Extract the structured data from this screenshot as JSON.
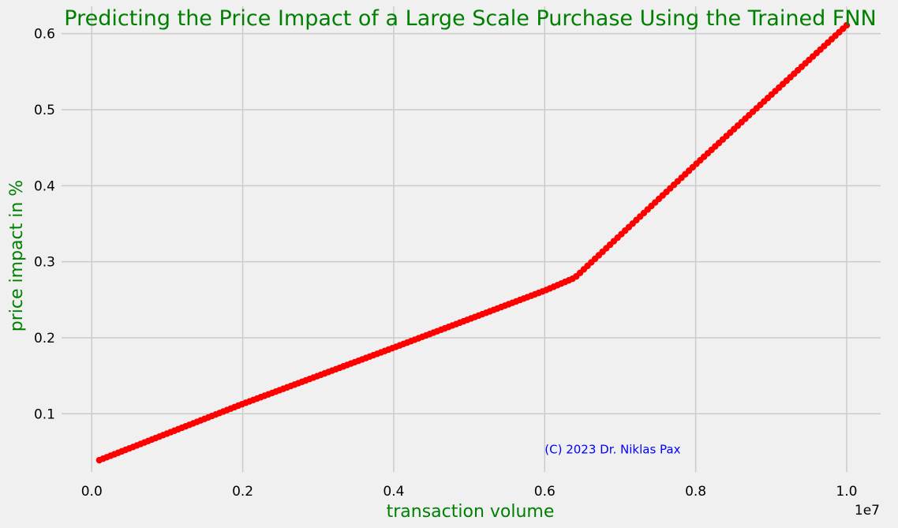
{
  "chart_data": {
    "type": "line",
    "title": "Predicting the Price Impact of a Large Scale Purchase Using the Trained FNN",
    "xlabel": "transaction volume",
    "ylabel": "price impact in %",
    "x_offset_label": "1e7",
    "x_scale": 10000000,
    "xlim": [
      -400000,
      10450000
    ],
    "ylim": [
      0.0235,
      0.636
    ],
    "xticks": [
      0,
      2000000,
      4000000,
      6000000,
      8000000,
      10000000
    ],
    "xtick_labels": [
      "0.0",
      "0.2",
      "0.4",
      "0.6",
      "0.8",
      "1.0"
    ],
    "yticks": [
      0.1,
      0.2,
      0.3,
      0.4,
      0.5,
      0.6
    ],
    "ytick_labels": [
      "0.1",
      "0.2",
      "0.3",
      "0.4",
      "0.5",
      "0.6"
    ],
    "grid": true,
    "legend": "none",
    "annotation": {
      "text": "(C) 2023 Dr. Niklas Pax",
      "x": 6000000,
      "y": 0.05,
      "color": "#0000ff"
    },
    "series": [
      {
        "color": "#ff0000",
        "marker": "circle",
        "x_start": 100000,
        "x_end": 10000000,
        "n_points": 200,
        "points": [
          {
            "x": 100000,
            "y": 0.039
          },
          {
            "x": 2000000,
            "y": 0.113
          },
          {
            "x": 4000000,
            "y": 0.187
          },
          {
            "x": 6000000,
            "y": 0.262
          },
          {
            "x": 6400000,
            "y": 0.279
          },
          {
            "x": 8000000,
            "y": 0.428
          },
          {
            "x": 10000000,
            "y": 0.611
          }
        ]
      }
    ],
    "colors": {
      "background": "#f0f0f0",
      "grid": "#cbcbcb",
      "title": "#008000",
      "axis_label": "#008000",
      "series": "#ff0000",
      "annotation": "#0000ff"
    }
  }
}
